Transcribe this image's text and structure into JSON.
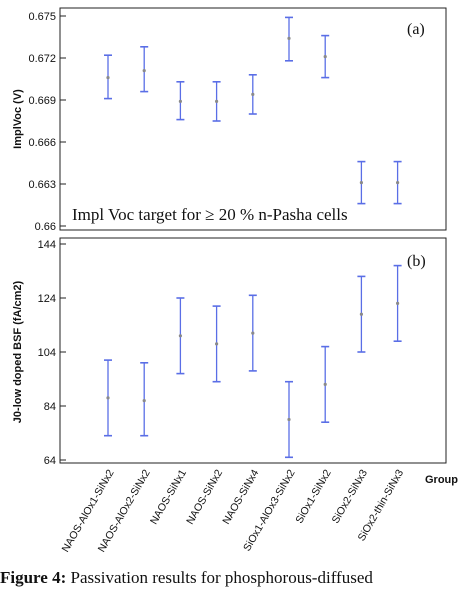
{
  "chart_data": [
    {
      "type": "errorbar",
      "panel_label": "(a)",
      "ylabel": "ImplVoc (V)",
      "ylim": [
        0.66,
        0.675
      ],
      "yticks": [
        "0.675",
        "0.672",
        "0.669",
        "0.666",
        "0.663",
        "0.66"
      ],
      "yticks_values": [
        0.675,
        0.672,
        0.669,
        0.666,
        0.663,
        0.66
      ],
      "annotation": "Impl Voc target for ≥ 20 % n-Pasha cells",
      "annotation_value": 0.66,
      "categories": [
        "NAOS-AlOx1-SiNx2",
        "NAOS-AlOx2-SiNx2",
        "NAOS-SiNx1",
        "NAOS-SiNx2",
        "NAOS-SiNx4",
        "SiOx1-AlOx3-SiNx2",
        "SiOx1-SiNx2",
        "SiOx2-SiNx3",
        "SiOx2-thin-SiNx3"
      ],
      "series": [
        {
          "mean": [
            0.6706,
            0.6711,
            0.6689,
            0.6689,
            0.6694,
            0.6734,
            0.6721,
            0.6631,
            0.6631
          ],
          "lower": [
            0.6691,
            0.6696,
            0.6676,
            0.6675,
            0.668,
            0.6718,
            0.6706,
            0.6616,
            0.6616
          ],
          "upper": [
            0.6722,
            0.6728,
            0.6703,
            0.6703,
            0.6708,
            0.6749,
            0.6736,
            0.6646,
            0.6646
          ]
        }
      ]
    },
    {
      "type": "errorbar",
      "panel_label": "(b)",
      "ylabel": "J0-low doped BSF (fA/cm2)",
      "ylim": [
        61,
        145
      ],
      "yticks": [
        "144",
        "124",
        "104",
        "84",
        "64"
      ],
      "yticks_values": [
        144,
        124,
        104,
        84,
        64
      ],
      "xlabel": "Group",
      "categories": [
        "NAOS-AlOx1-SiNx2",
        "NAOS-AlOx2-SiNx2",
        "NAOS-SiNx1",
        "NAOS-SiNx2",
        "NAOS-SiNx4",
        "SiOx1-AlOx3-SiNx2",
        "SiOx1-SiNx2",
        "SiOx2-SiNx3",
        "SiOx2-thin-SiNx3"
      ],
      "series": [
        {
          "mean": [
            87,
            86,
            110,
            107,
            111,
            79,
            92,
            118,
            122
          ],
          "lower": [
            73,
            73,
            96,
            93,
            97,
            65,
            78,
            104,
            108
          ],
          "upper": [
            101,
            100,
            124,
            121,
            125,
            93,
            106,
            132,
            136
          ]
        }
      ]
    }
  ],
  "caption": {
    "prefix": "Figure 4:",
    "text": " Passivation results for phosphorous-diffused"
  },
  "colors": {
    "errorbar": "#5a6ee6",
    "marker": "#8a8a8a",
    "axis": "#222222"
  }
}
